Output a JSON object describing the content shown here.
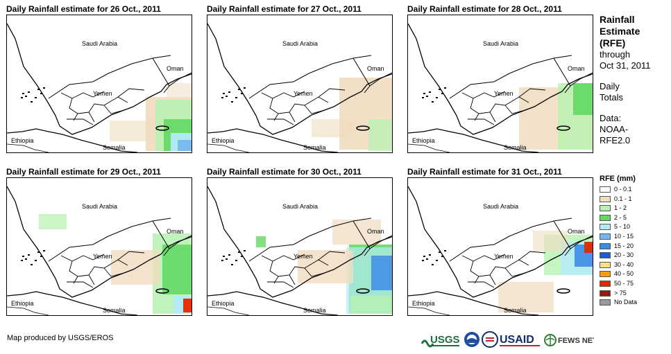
{
  "panels": [
    {
      "title": "Daily Rainfall estimate for 26 Oct., 2011",
      "day": 26
    },
    {
      "title": "Daily Rainfall estimate for 27 Oct., 2011",
      "day": 27
    },
    {
      "title": "Daily Rainfall estimate for 28 Oct., 2011",
      "day": 28
    },
    {
      "title": "Daily Rainfall estimate for 29 Oct., 2011",
      "day": 29
    },
    {
      "title": "Daily Rainfall estimate for 30 Oct., 2011",
      "day": 30
    },
    {
      "title": "Daily Rainfall estimate for 31 Oct., 2011",
      "day": 31
    }
  ],
  "map_labels": {
    "saudi": "Saudi Arabia",
    "oman": "Oman",
    "yemen": "Yemen",
    "ethiopia": "Ethiopia",
    "somalia": "Somalia"
  },
  "side": {
    "title_lines": [
      "Rainfall",
      "Estimate",
      "(RFE)"
    ],
    "through": "through",
    "date": "Oct 31, 2011",
    "daily_lines": [
      "Daily",
      "Totals"
    ],
    "data_lines": [
      "Data:",
      "NOAA-",
      "RFE2.0"
    ]
  },
  "legend": {
    "title": "RFE (mm)",
    "items": [
      {
        "label": "0 - 0.1",
        "color": "#ffffff"
      },
      {
        "label": "0.1 - 1",
        "color": "#f0dcc0"
      },
      {
        "label": "1 - 2",
        "color": "#b6f2b0"
      },
      {
        "label": "2 - 5",
        "color": "#64d864"
      },
      {
        "label": "5 - 10",
        "color": "#b4eaf8"
      },
      {
        "label": "10 - 15",
        "color": "#78b8f0"
      },
      {
        "label": "15 - 20",
        "color": "#3c8ce6"
      },
      {
        "label": "20 - 30",
        "color": "#1e5adc"
      },
      {
        "label": "30 - 40",
        "color": "#f8e08c"
      },
      {
        "label": "40 - 50",
        "color": "#f4a000"
      },
      {
        "label": "50 - 75",
        "color": "#e62800"
      },
      {
        "label": "> 75",
        "color": "#a01414"
      },
      {
        "label": "No Data",
        "color": "#9a9a9a"
      }
    ]
  },
  "credit": "Map produced by USGS/EROS",
  "logos": {
    "usgs": "USGS",
    "usaid": "USAID",
    "fews": "FEWS NET"
  }
}
